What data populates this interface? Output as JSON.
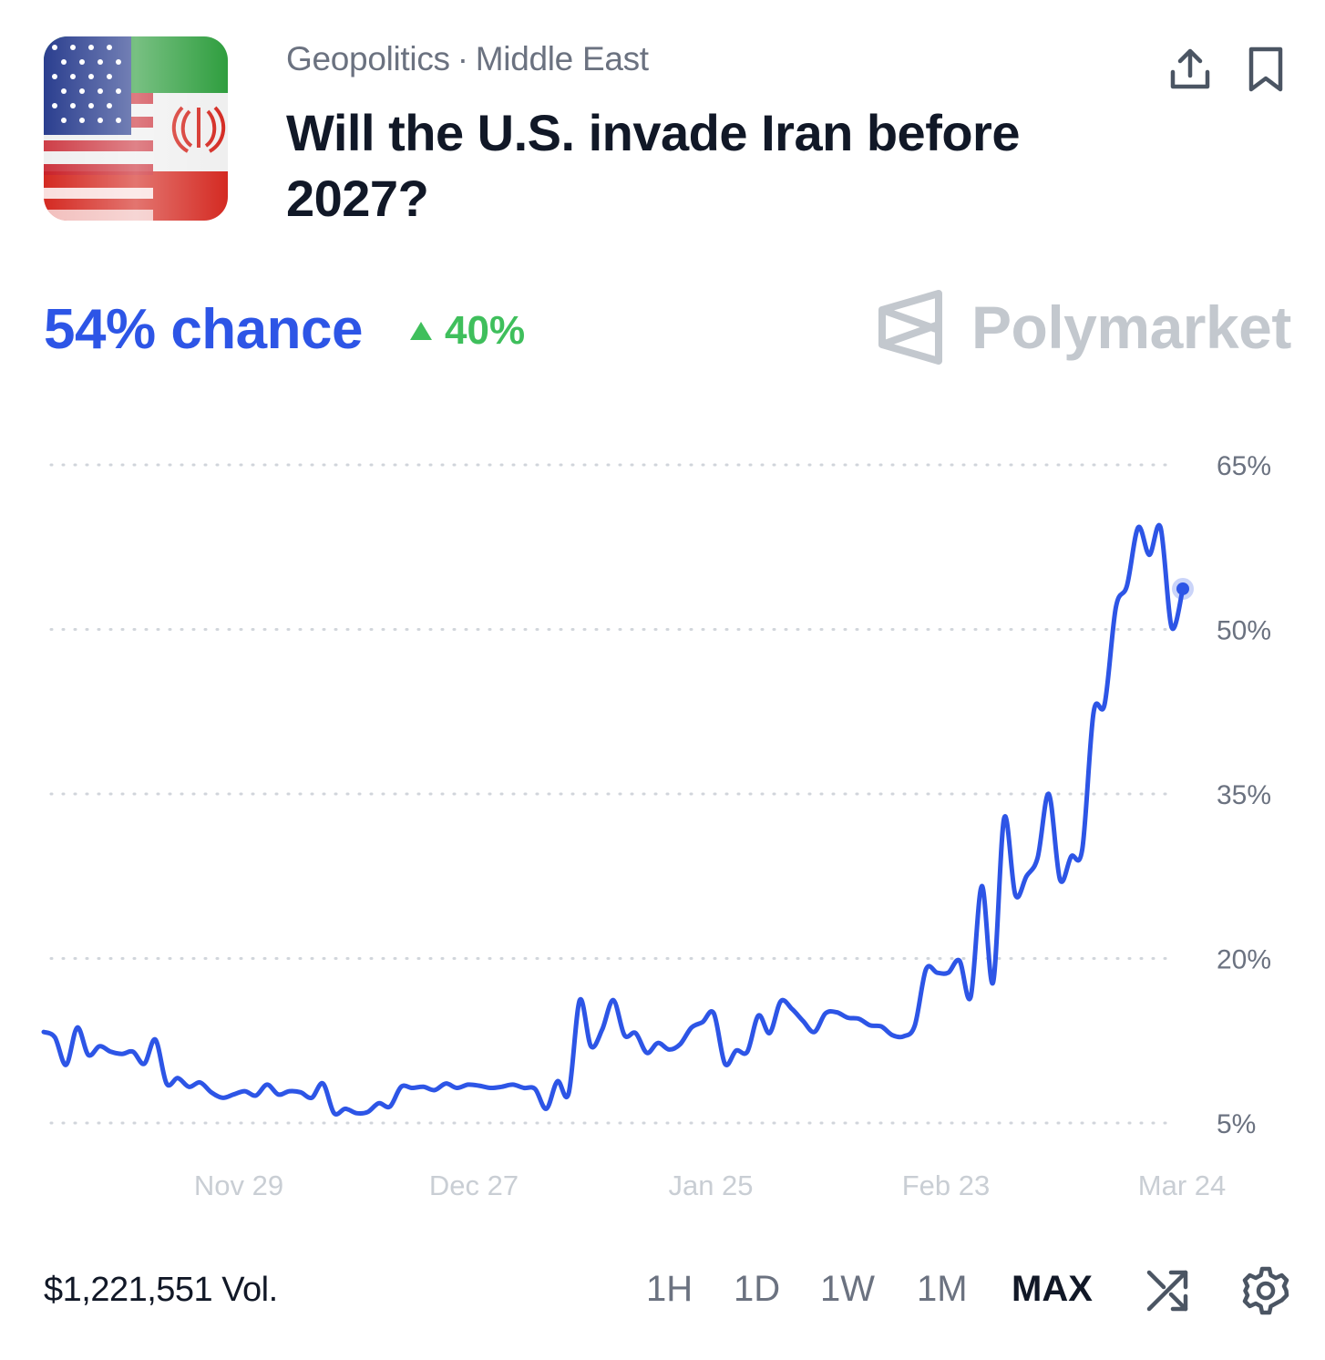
{
  "header": {
    "image_icon": "us-iran-flags-image",
    "category": "Geopolitics",
    "separator": "·",
    "subcategory": "Middle East",
    "title": "Will the U.S. invade Iran before 2027?",
    "share_icon": "share-upload-icon",
    "bookmark_icon": "bookmark-icon"
  },
  "summary": {
    "chance_label": "54% chance",
    "change_icon": "triangle-up-icon",
    "change_value": "40%",
    "brand": "Polymarket",
    "brand_icon": "polymarket-logo-icon"
  },
  "colors": {
    "accent": "#2d55e6",
    "positive": "#3fbf5c",
    "muted": "#6b7280",
    "brand_grey": "#c3c8ce"
  },
  "chart_data": {
    "type": "line",
    "title": "",
    "xlabel": "",
    "ylabel": "",
    "y_ticks": [
      "65%",
      "50%",
      "35%",
      "20%",
      "5%"
    ],
    "y_tick_values": [
      65,
      50,
      35,
      20,
      5
    ],
    "ylim": [
      5,
      65
    ],
    "x_ticks": [
      "Nov 29",
      "Dec 27",
      "Jan 25",
      "Feb 23",
      "Mar 24"
    ],
    "grid": "horizontal-dotted",
    "series": [
      {
        "color": "#2d55e6",
        "values": [
          13.3,
          12.8,
          10.3,
          13.7,
          11.2,
          12.0,
          11.5,
          11.3,
          11.5,
          10.4,
          12.6,
          8.6,
          9.1,
          8.3,
          8.7,
          7.8,
          7.3,
          7.6,
          7.9,
          7.5,
          8.5,
          7.6,
          7.9,
          7.8,
          7.3,
          8.6,
          5.9,
          6.3,
          5.9,
          6.0,
          6.8,
          6.5,
          8.3,
          8.2,
          8.3,
          8.0,
          8.6,
          8.2,
          8.5,
          8.4,
          8.2,
          8.3,
          8.5,
          8.2,
          8.1,
          6.3,
          8.8,
          7.7,
          16.2,
          12.0,
          13.5,
          16.2,
          13.0,
          13.2,
          11.4,
          12.3,
          11.7,
          12.2,
          13.7,
          14.2,
          15.0,
          10.4,
          11.6,
          11.5,
          14.8,
          13.2,
          16.1,
          15.4,
          14.3,
          13.3,
          15.0,
          15.1,
          14.6,
          14.5,
          13.9,
          13.8,
          13.0,
          12.9,
          13.9,
          19.0,
          18.7,
          18.7,
          19.8,
          16.5,
          26.6,
          17.8,
          32.8,
          25.8,
          27.5,
          29.2,
          35.0,
          27.2,
          29.3,
          30.0,
          42.4,
          43.2,
          52.0,
          54.0,
          59.3,
          56.8,
          59.3,
          50.2,
          53.7
        ]
      }
    ],
    "current_value": 53.7
  },
  "footer": {
    "volume": "$1,221,551 Vol.",
    "ranges": [
      "1H",
      "1D",
      "1W",
      "1M",
      "MAX"
    ],
    "active_range": "MAX",
    "random_icon": "shuffle-icon",
    "settings_icon": "gear-icon"
  }
}
